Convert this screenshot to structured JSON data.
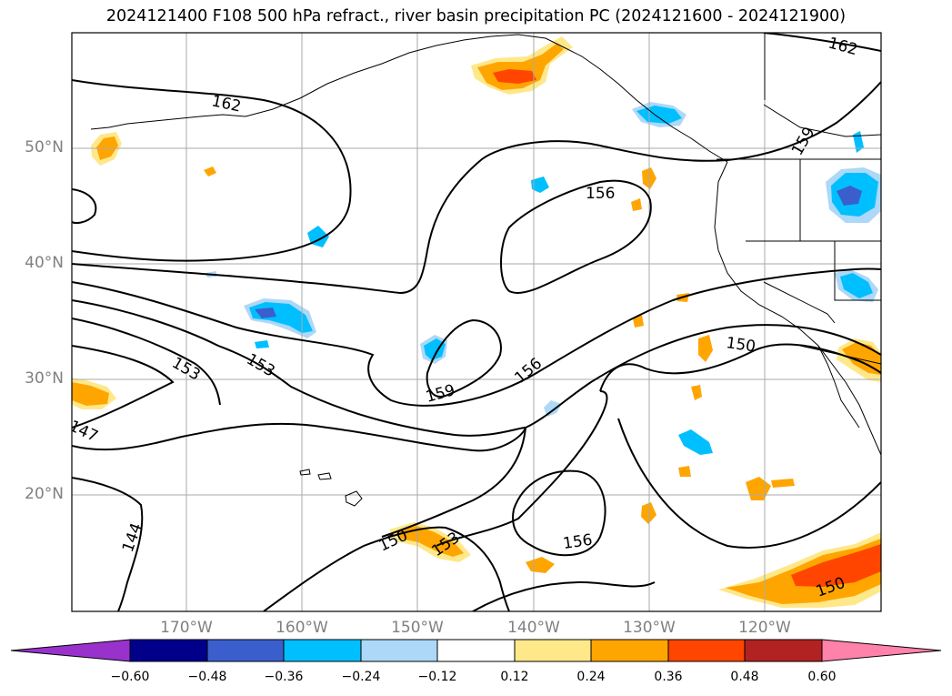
{
  "title": "2024121400 F108 500 hPa refract., river basin precipitation PC (2024121600 - 2024121900)",
  "latitude_labels": [
    "50°N",
    "40°N",
    "30°N",
    "20°N"
  ],
  "longitude_labels": [
    "170°W",
    "160°W",
    "150°W",
    "140°W",
    "130°W",
    "120°W"
  ],
  "contour_labels": [
    "162",
    "162",
    "159",
    "156",
    "159",
    "156",
    "150",
    "153",
    "153",
    "147",
    "144",
    "150",
    "153",
    "156",
    "150"
  ],
  "colorbar": {
    "tick_labels": [
      "−0.60",
      "−0.48",
      "−0.36",
      "−0.24",
      "−0.12",
      "0.12",
      "0.24",
      "0.36",
      "0.48",
      "0.60"
    ],
    "colors": [
      "#9932CC",
      "#00008B",
      "#3A5FCD",
      "#00BFFF",
      "#ADD8F7",
      "#FFFFFF",
      "#FFE88A",
      "#FFA500",
      "#FF4500",
      "#B22222",
      "#FF82AB"
    ]
  }
}
